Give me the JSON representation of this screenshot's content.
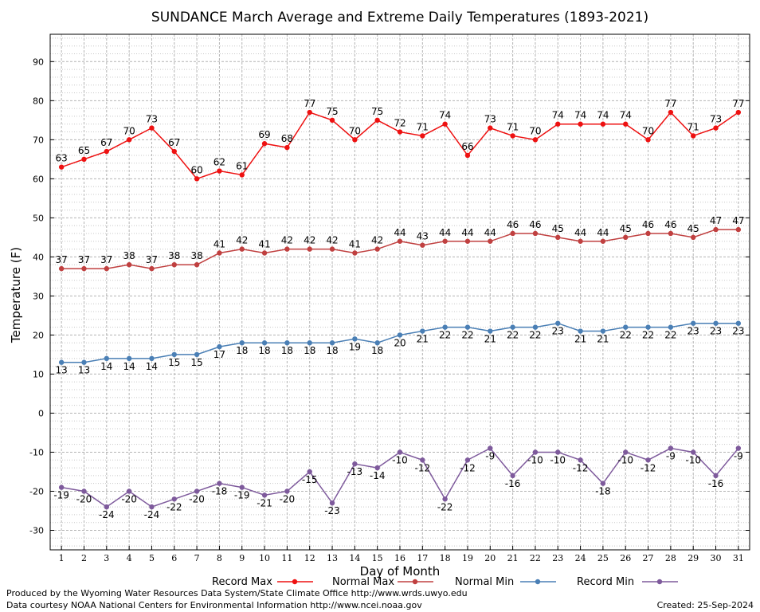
{
  "chart_data": {
    "type": "line",
    "title": "SUNDANCE March Average and Extreme Daily Temperatures (1893-2021)",
    "xlabel": "Day of Month",
    "ylabel": "Temperature (F)",
    "ylim": [
      -35,
      97
    ],
    "yticks": [
      -30,
      -20,
      -10,
      0,
      10,
      20,
      30,
      40,
      50,
      60,
      70,
      80,
      90
    ],
    "xlim": [
      0.5,
      31.5
    ],
    "categories": [
      1,
      2,
      3,
      4,
      5,
      6,
      7,
      8,
      9,
      10,
      11,
      12,
      13,
      14,
      15,
      16,
      17,
      18,
      19,
      20,
      21,
      22,
      23,
      24,
      25,
      26,
      27,
      28,
      29,
      30,
      31
    ],
    "grid": true,
    "legend_position": "bottom",
    "series": [
      {
        "name": "Record Max",
        "color": "#ee1111",
        "label_position": "above",
        "values": [
          63,
          65,
          67,
          70,
          73,
          67,
          60,
          62,
          61,
          69,
          68,
          77,
          75,
          70,
          75,
          72,
          71,
          74,
          66,
          73,
          71,
          70,
          74,
          74,
          74,
          74,
          70,
          77,
          71,
          73,
          77
        ]
      },
      {
        "name": "Normal Max",
        "color": "#c04040",
        "label_position": "above",
        "values": [
          37,
          37,
          37,
          38,
          37,
          38,
          38,
          41,
          42,
          41,
          42,
          42,
          42,
          41,
          42,
          44,
          43,
          44,
          44,
          44,
          46,
          46,
          45,
          44,
          44,
          45,
          46,
          46,
          45,
          47,
          47
        ]
      },
      {
        "name": "Normal Min",
        "color": "#4a7fb5",
        "label_position": "below",
        "values": [
          13,
          13,
          14,
          14,
          14,
          15,
          15,
          17,
          18,
          18,
          18,
          18,
          18,
          19,
          18,
          20,
          21,
          22,
          22,
          21,
          22,
          22,
          23,
          21,
          21,
          22,
          22,
          22,
          23,
          23,
          23
        ]
      },
      {
        "name": "Record Min",
        "color": "#7e5a9c",
        "label_position": "below",
        "values": [
          -19,
          -20,
          -24,
          -20,
          -24,
          -22,
          -20,
          -18,
          -19,
          -21,
          -20,
          -15,
          -23,
          -13,
          -14,
          -10,
          -12,
          -22,
          -12,
          -9,
          -16,
          -10,
          -10,
          -12,
          -18,
          -10,
          -12,
          -9,
          -10,
          -16,
          -9
        ]
      }
    ]
  },
  "footer": {
    "credit_line1": "Produced by the Wyoming Water Resources Data System/State Climate Office http://www.wrds.uwyo.edu",
    "credit_line2": "Data courtesy NOAA National Centers for Environmental Information http://www.ncei.noaa.gov",
    "created": "Created:  25-Sep-2024"
  }
}
